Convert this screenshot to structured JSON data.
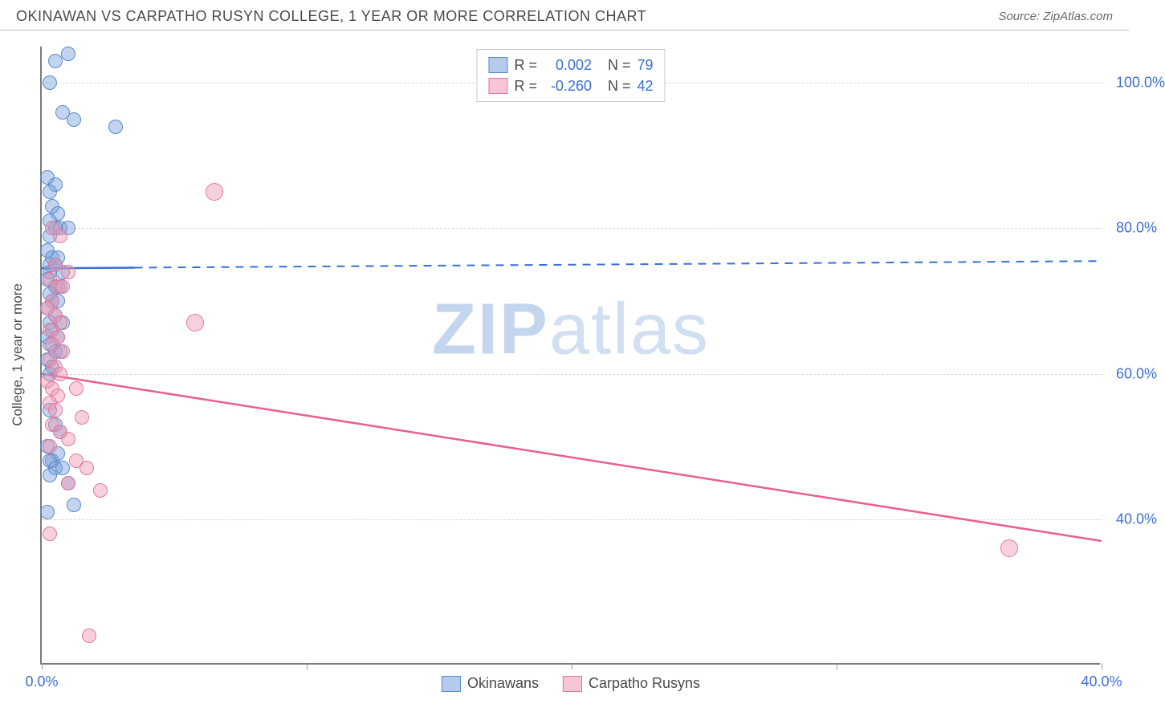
{
  "header": {
    "title": "OKINAWAN VS CARPATHO RUSYN COLLEGE, 1 YEAR OR MORE CORRELATION CHART",
    "source": "Source: ZipAtlas.com"
  },
  "watermark": {
    "part1": "ZIP",
    "part2": "atlas"
  },
  "chart": {
    "type": "scatter",
    "x_axis": {
      "min": 0,
      "max": 40,
      "ticks": [
        0,
        10,
        20,
        30,
        40
      ],
      "labels": [
        "0.0%",
        "",
        "",
        "",
        "40.0%"
      ]
    },
    "y_axis": {
      "min": 20,
      "max": 105,
      "gridlines": [
        40,
        60,
        80,
        100
      ],
      "labels": [
        "40.0%",
        "60.0%",
        "80.0%",
        "100.0%"
      ],
      "title": "College, 1 year or more"
    },
    "series": [
      {
        "name": "Okinawans",
        "color_fill": "rgba(120,160,220,0.45)",
        "color_stroke": "#5a8acb",
        "r_label": "R =",
        "r_value": "0.002",
        "n_label": "N =",
        "n_value": "79",
        "trend": {
          "x1": 0,
          "y1": 74.5,
          "x2": 40,
          "y2": 75.5,
          "solid_until_x": 3.5,
          "color": "#3a6fd8",
          "width": 2.5
        },
        "points": [
          [
            1.0,
            104
          ],
          [
            0.5,
            103
          ],
          [
            0.3,
            100
          ],
          [
            0.8,
            96
          ],
          [
            1.2,
            95
          ],
          [
            2.8,
            94
          ],
          [
            0.2,
            87
          ],
          [
            0.5,
            86
          ],
          [
            0.3,
            85
          ],
          [
            0.4,
            83
          ],
          [
            0.6,
            82
          ],
          [
            0.3,
            81
          ],
          [
            0.5,
            80
          ],
          [
            0.7,
            80
          ],
          [
            1.0,
            80
          ],
          [
            0.3,
            79
          ],
          [
            0.2,
            77
          ],
          [
            0.4,
            76
          ],
          [
            0.6,
            76
          ],
          [
            0.3,
            75
          ],
          [
            0.5,
            75
          ],
          [
            0.8,
            74
          ],
          [
            0.3,
            74
          ],
          [
            0.2,
            73
          ],
          [
            0.5,
            72
          ],
          [
            0.7,
            72
          ],
          [
            0.3,
            71
          ],
          [
            0.4,
            70
          ],
          [
            0.6,
            70
          ],
          [
            0.2,
            69
          ],
          [
            0.5,
            68
          ],
          [
            0.3,
            67
          ],
          [
            0.8,
            67
          ],
          [
            0.4,
            66
          ],
          [
            0.2,
            65
          ],
          [
            0.6,
            65
          ],
          [
            0.3,
            64
          ],
          [
            0.5,
            63
          ],
          [
            0.7,
            63
          ],
          [
            0.2,
            62
          ],
          [
            0.4,
            61
          ],
          [
            0.3,
            60
          ],
          [
            0.3,
            55
          ],
          [
            0.5,
            53
          ],
          [
            0.7,
            52
          ],
          [
            0.2,
            50
          ],
          [
            0.4,
            48
          ],
          [
            0.6,
            49
          ],
          [
            0.3,
            48
          ],
          [
            0.5,
            47
          ],
          [
            0.8,
            47
          ],
          [
            0.3,
            46
          ],
          [
            1.0,
            45
          ],
          [
            0.2,
            41
          ],
          [
            1.2,
            42
          ]
        ]
      },
      {
        "name": "Carpatho Rusyns",
        "color_fill": "rgba(240,150,175,0.45)",
        "color_stroke": "#e078a0",
        "r_label": "R =",
        "r_value": "-0.260",
        "n_label": "N =",
        "n_value": "42",
        "trend": {
          "x1": 0,
          "y1": 60,
          "x2": 40,
          "y2": 37,
          "solid_until_x": 40,
          "color": "#eb5f8e",
          "width": 2.5
        },
        "points": [
          [
            6.5,
            85
          ],
          [
            0.4,
            80
          ],
          [
            0.7,
            79
          ],
          [
            0.5,
            75
          ],
          [
            1.0,
            74
          ],
          [
            0.3,
            73
          ],
          [
            0.6,
            72
          ],
          [
            0.8,
            72
          ],
          [
            0.4,
            70
          ],
          [
            0.2,
            69
          ],
          [
            0.5,
            68
          ],
          [
            0.7,
            67
          ],
          [
            5.8,
            67
          ],
          [
            0.3,
            66
          ],
          [
            0.6,
            65
          ],
          [
            0.4,
            64
          ],
          [
            0.8,
            63
          ],
          [
            0.3,
            62
          ],
          [
            0.5,
            61
          ],
          [
            0.7,
            60
          ],
          [
            0.2,
            59
          ],
          [
            0.4,
            58
          ],
          [
            1.3,
            58
          ],
          [
            0.6,
            57
          ],
          [
            0.3,
            56
          ],
          [
            0.5,
            55
          ],
          [
            1.5,
            54
          ],
          [
            0.4,
            53
          ],
          [
            0.7,
            52
          ],
          [
            1.0,
            51
          ],
          [
            0.3,
            50
          ],
          [
            1.3,
            48
          ],
          [
            1.7,
            47
          ],
          [
            1.0,
            45
          ],
          [
            2.2,
            44
          ],
          [
            0.3,
            38
          ],
          [
            36.5,
            36
          ],
          [
            1.8,
            24
          ]
        ]
      }
    ]
  }
}
